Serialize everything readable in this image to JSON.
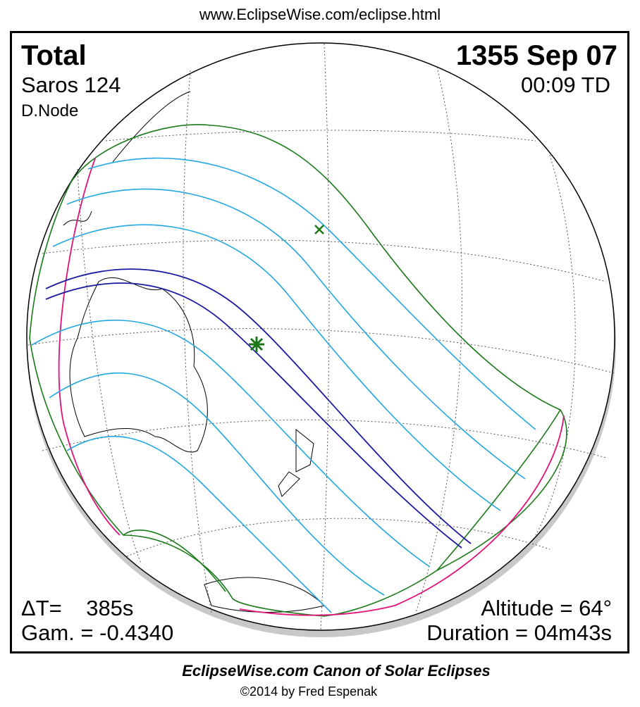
{
  "header": {
    "url": "www.EclipseWise.com/eclipse.html"
  },
  "map": {
    "eclipse_type": "Total",
    "date": "1355 Sep 07",
    "saros": "Saros 124",
    "time": "00:09 TD",
    "node": "D.Node",
    "delta_t": "ΔT=    385s",
    "gamma": "Gam. = -0.4340",
    "altitude": "Altitude = 64°",
    "duration": "Duration = 04m43s"
  },
  "footer": {
    "title": "EclipseWise.com Canon of Solar Eclipses",
    "copyright": "©2014 by Fred Espenak"
  }
}
